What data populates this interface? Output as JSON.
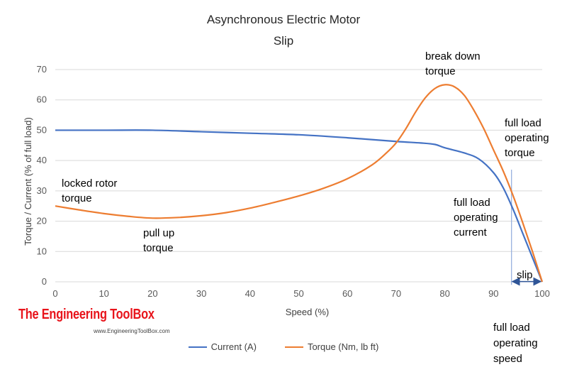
{
  "colors": {
    "current": "#4472C4",
    "torque": "#ED7D31",
    "grid": "#d9d9d9",
    "marker": "#8faadc"
  },
  "logo": {
    "name": "The Engineering ToolBox",
    "url": "www.EngineeringToolBox.com"
  },
  "chart_data": {
    "type": "line",
    "title": "Asynchronous Electric Motor",
    "subtitle": "Slip",
    "xlabel": "Speed (%)",
    "ylabel": "Torque / Current (% of full load)",
    "xlim": [
      0,
      100
    ],
    "ylim": [
      0,
      70
    ],
    "xticks": [
      0,
      10,
      20,
      30,
      40,
      50,
      60,
      70,
      80,
      90,
      100
    ],
    "yticks": [
      0,
      10,
      20,
      30,
      40,
      50,
      60,
      70
    ],
    "grid": "horizontal",
    "legend_position": "bottom",
    "series": [
      {
        "name": "Current (A)",
        "x": [
          0,
          10,
          20,
          30,
          40,
          50,
          60,
          70,
          75,
          78,
          80,
          84,
          87,
          90,
          92,
          94,
          96,
          98,
          100
        ],
        "y": [
          50,
          50,
          50,
          49.5,
          49,
          48.5,
          47.5,
          46.3,
          45.8,
          45.3,
          44.2,
          42.5,
          40.5,
          36,
          31,
          24,
          16,
          8,
          0
        ]
      },
      {
        "name": "Torque (Nm, lb ft)",
        "x": [
          0,
          5,
          10,
          15,
          20,
          25,
          30,
          35,
          40,
          45,
          50,
          55,
          60,
          65,
          68,
          70,
          72,
          74,
          76,
          78,
          80,
          82,
          84,
          86,
          88,
          90,
          92,
          94,
          96,
          98,
          100
        ],
        "y": [
          25,
          23.7,
          22.5,
          21.6,
          21,
          21.2,
          21.8,
          22.8,
          24.3,
          26.2,
          28.3,
          30.8,
          34,
          38.5,
          42.5,
          45.8,
          50.5,
          56,
          60.7,
          63.8,
          65,
          64.3,
          61.5,
          56.5,
          50.5,
          43.5,
          36.5,
          28.5,
          19.5,
          10,
          0
        ]
      }
    ],
    "annotations": [
      {
        "id": "locked-rotor",
        "lines": [
          "locked rotor",
          "torque"
        ]
      },
      {
        "id": "pull-up",
        "lines": [
          "pull up",
          "torque"
        ]
      },
      {
        "id": "break-down",
        "lines": [
          "break down",
          "torque"
        ]
      },
      {
        "id": "fl-torque",
        "lines": [
          "full load",
          "operating",
          "torque"
        ]
      },
      {
        "id": "fl-current",
        "lines": [
          "full load",
          "operating",
          "current"
        ]
      },
      {
        "id": "fl-speed",
        "lines": [
          "full load",
          "operating",
          "speed"
        ]
      },
      {
        "id": "slip",
        "lines": [
          "slip"
        ]
      }
    ]
  }
}
